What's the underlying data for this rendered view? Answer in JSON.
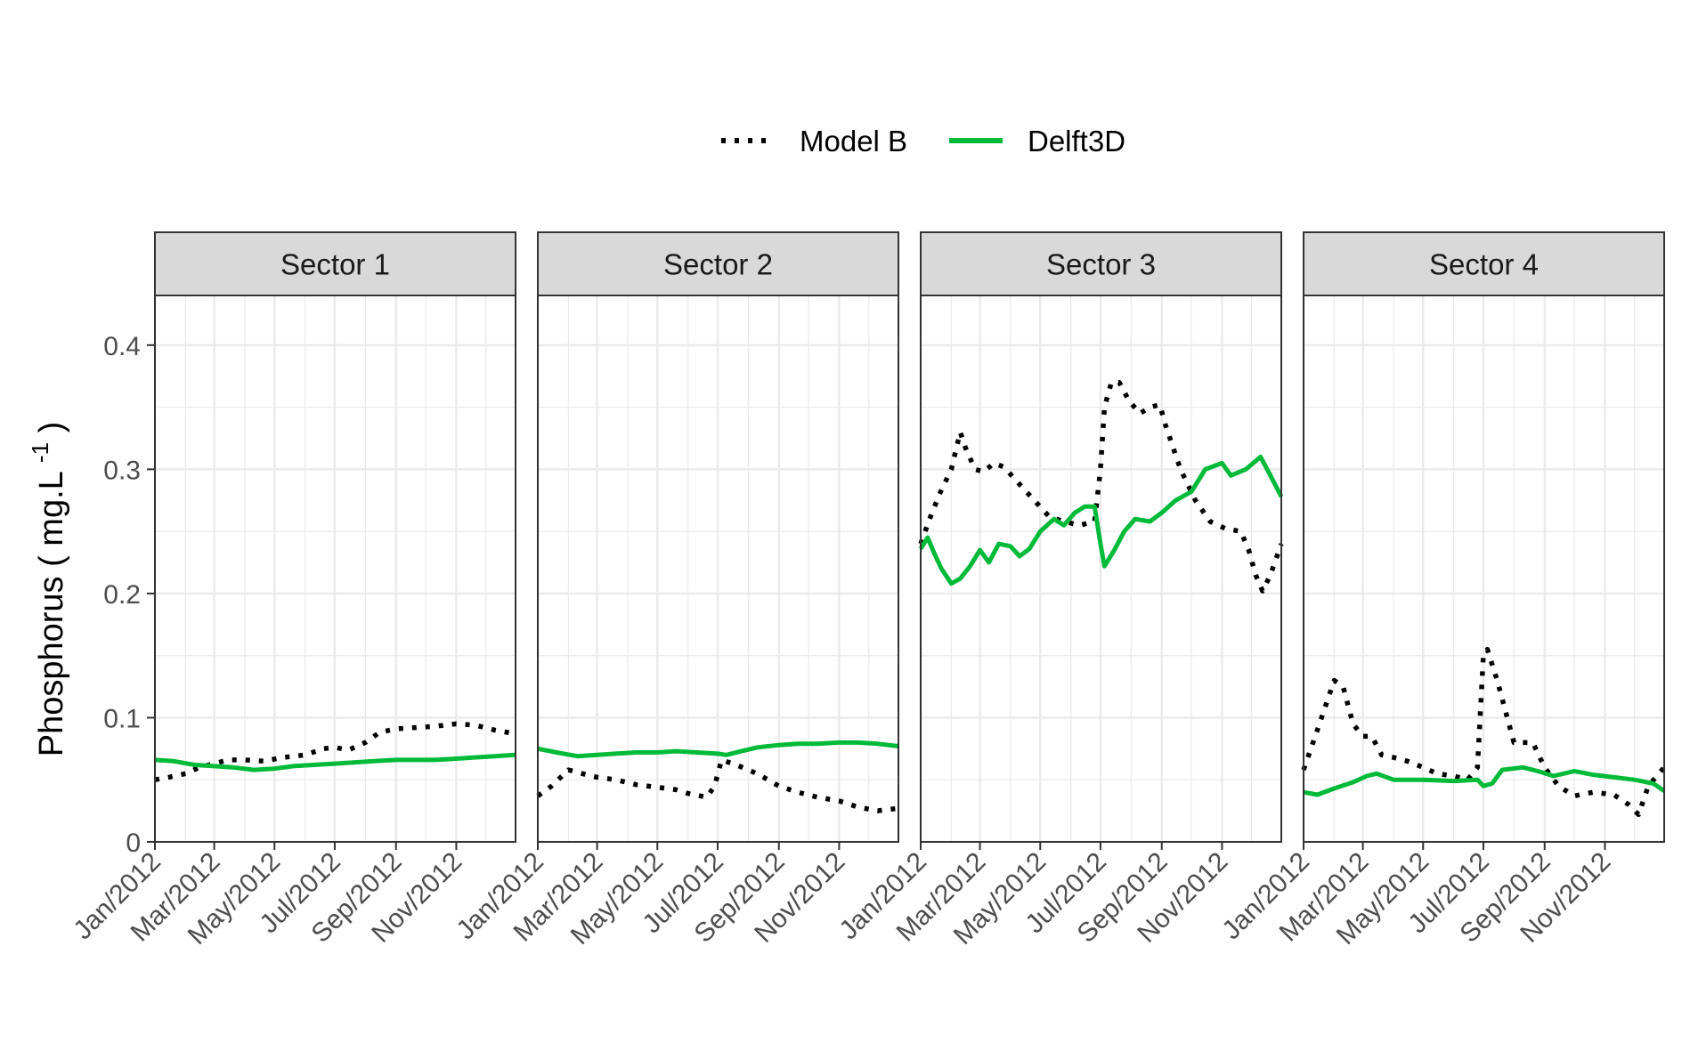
{
  "chart_data": {
    "type": "line",
    "ylabel": "Phosphorus",
    "ylabel_unit_base": "mg.L",
    "ylabel_unit_exp": "-1",
    "ylim": [
      0,
      0.44
    ],
    "yticks": [
      "0",
      "0.1",
      "0.2",
      "0.3",
      "0.4"
    ],
    "ytick_values": [
      0,
      0.1,
      0.2,
      0.3,
      0.4
    ],
    "xtick_labels": [
      "Jan/2012",
      "Mar/2012",
      "May/2012",
      "Jul/2012",
      "Sep/2012",
      "Nov/2012"
    ],
    "xtick_dates": [
      "2012-01-01",
      "2012-03-01",
      "2012-05-01",
      "2012-07-01",
      "2012-09-01",
      "2012-11-01"
    ],
    "xlim": [
      "2012-01-01",
      "2012-12-31"
    ],
    "grid": true,
    "legend_placement": "top",
    "legend": [
      {
        "name": "Model B",
        "style": "dotted",
        "color": "#000000"
      },
      {
        "name": "Delft3D",
        "style": "solid",
        "color": "#00BA38"
      }
    ],
    "panels": [
      {
        "title": "Sector 1",
        "series": [
          {
            "name": "Model B",
            "points": [
              [
                "2012-01-01",
                0.05
              ],
              [
                "2012-01-15",
                0.052
              ],
              [
                "2012-02-01",
                0.055
              ],
              [
                "2012-02-15",
                0.06
              ],
              [
                "2012-03-01",
                0.063
              ],
              [
                "2012-03-15",
                0.066
              ],
              [
                "2012-04-01",
                0.066
              ],
              [
                "2012-04-20",
                0.065
              ],
              [
                "2012-05-10",
                0.068
              ],
              [
                "2012-06-01",
                0.07
              ],
              [
                "2012-06-20",
                0.075
              ],
              [
                "2012-07-01",
                0.076
              ],
              [
                "2012-07-15",
                0.074
              ],
              [
                "2012-08-01",
                0.08
              ],
              [
                "2012-08-15",
                0.088
              ],
              [
                "2012-09-01",
                0.091
              ],
              [
                "2012-09-20",
                0.092
              ],
              [
                "2012-10-10",
                0.093
              ],
              [
                "2012-11-01",
                0.095
              ],
              [
                "2012-11-20",
                0.094
              ],
              [
                "2012-12-10",
                0.09
              ],
              [
                "2012-12-31",
                0.087
              ]
            ]
          },
          {
            "name": "Delft3D",
            "points": [
              [
                "2012-01-01",
                0.066
              ],
              [
                "2012-01-20",
                0.065
              ],
              [
                "2012-02-10",
                0.062
              ],
              [
                "2012-03-01",
                0.061
              ],
              [
                "2012-03-20",
                0.06
              ],
              [
                "2012-04-10",
                0.058
              ],
              [
                "2012-05-01",
                0.059
              ],
              [
                "2012-05-20",
                0.061
              ],
              [
                "2012-06-10",
                0.062
              ],
              [
                "2012-07-01",
                0.063
              ],
              [
                "2012-07-20",
                0.064
              ],
              [
                "2012-08-10",
                0.065
              ],
              [
                "2012-09-01",
                0.066
              ],
              [
                "2012-09-20",
                0.066
              ],
              [
                "2012-10-10",
                0.066
              ],
              [
                "2012-11-01",
                0.067
              ],
              [
                "2012-11-20",
                0.068
              ],
              [
                "2012-12-10",
                0.069
              ],
              [
                "2012-12-31",
                0.07
              ]
            ]
          }
        ]
      },
      {
        "title": "Sector 2",
        "series": [
          {
            "name": "Model B",
            "points": [
              [
                "2012-01-01",
                0.037
              ],
              [
                "2012-01-15",
                0.045
              ],
              [
                "2012-02-01",
                0.058
              ],
              [
                "2012-02-15",
                0.055
              ],
              [
                "2012-03-01",
                0.052
              ],
              [
                "2012-03-20",
                0.05
              ],
              [
                "2012-04-10",
                0.046
              ],
              [
                "2012-05-01",
                0.044
              ],
              [
                "2012-05-20",
                0.042
              ],
              [
                "2012-06-01",
                0.039
              ],
              [
                "2012-06-20",
                0.036
              ],
              [
                "2012-06-28",
                0.045
              ],
              [
                "2012-07-05",
                0.066
              ],
              [
                "2012-07-20",
                0.062
              ],
              [
                "2012-08-10",
                0.055
              ],
              [
                "2012-09-01",
                0.045
              ],
              [
                "2012-09-20",
                0.04
              ],
              [
                "2012-10-10",
                0.036
              ],
              [
                "2012-11-01",
                0.033
              ],
              [
                "2012-11-20",
                0.028
              ],
              [
                "2012-12-10",
                0.025
              ],
              [
                "2012-12-31",
                0.027
              ]
            ]
          },
          {
            "name": "Delft3D",
            "points": [
              [
                "2012-01-01",
                0.075
              ],
              [
                "2012-01-20",
                0.072
              ],
              [
                "2012-02-10",
                0.069
              ],
              [
                "2012-03-01",
                0.07
              ],
              [
                "2012-03-20",
                0.071
              ],
              [
                "2012-04-10",
                0.072
              ],
              [
                "2012-05-01",
                0.072
              ],
              [
                "2012-05-20",
                0.073
              ],
              [
                "2012-06-10",
                0.072
              ],
              [
                "2012-07-01",
                0.071
              ],
              [
                "2012-07-10",
                0.07
              ],
              [
                "2012-07-25",
                0.073
              ],
              [
                "2012-08-10",
                0.076
              ],
              [
                "2012-09-01",
                0.078
              ],
              [
                "2012-09-20",
                0.079
              ],
              [
                "2012-10-10",
                0.079
              ],
              [
                "2012-11-01",
                0.08
              ],
              [
                "2012-11-20",
                0.08
              ],
              [
                "2012-12-10",
                0.079
              ],
              [
                "2012-12-31",
                0.077
              ]
            ]
          }
        ]
      },
      {
        "title": "Sector 3",
        "series": [
          {
            "name": "Model B",
            "points": [
              [
                "2012-01-01",
                0.24
              ],
              [
                "2012-01-10",
                0.26
              ],
              [
                "2012-01-20",
                0.28
              ],
              [
                "2012-02-01",
                0.3
              ],
              [
                "2012-02-10",
                0.33
              ],
              [
                "2012-02-15",
                0.318
              ],
              [
                "2012-02-25",
                0.3
              ],
              [
                "2012-03-05",
                0.298
              ],
              [
                "2012-03-15",
                0.305
              ],
              [
                "2012-03-25",
                0.302
              ],
              [
                "2012-04-10",
                0.288
              ],
              [
                "2012-04-25",
                0.275
              ],
              [
                "2012-05-10",
                0.262
              ],
              [
                "2012-05-25",
                0.258
              ],
              [
                "2012-06-10",
                0.255
              ],
              [
                "2012-06-25",
                0.258
              ],
              [
                "2012-07-01",
                0.3
              ],
              [
                "2012-07-05",
                0.35
              ],
              [
                "2012-07-12",
                0.37
              ],
              [
                "2012-07-20",
                0.37
              ],
              [
                "2012-07-30",
                0.355
              ],
              [
                "2012-08-10",
                0.345
              ],
              [
                "2012-08-20",
                0.35
              ],
              [
                "2012-08-30",
                0.352
              ],
              [
                "2012-09-05",
                0.335
              ],
              [
                "2012-09-20",
                0.3
              ],
              [
                "2012-10-05",
                0.275
              ],
              [
                "2012-10-20",
                0.258
              ],
              [
                "2012-11-05",
                0.252
              ],
              [
                "2012-11-20",
                0.25
              ],
              [
                "2012-11-28",
                0.235
              ],
              [
                "2012-12-05",
                0.215
              ],
              [
                "2012-12-12",
                0.202
              ],
              [
                "2012-12-20",
                0.215
              ],
              [
                "2012-12-31",
                0.24
              ]
            ]
          },
          {
            "name": "Delft3D",
            "points": [
              [
                "2012-01-01",
                0.236
              ],
              [
                "2012-01-08",
                0.245
              ],
              [
                "2012-01-15",
                0.232
              ],
              [
                "2012-01-22",
                0.22
              ],
              [
                "2012-02-01",
                0.208
              ],
              [
                "2012-02-10",
                0.212
              ],
              [
                "2012-02-20",
                0.222
              ],
              [
                "2012-03-01",
                0.235
              ],
              [
                "2012-03-10",
                0.225
              ],
              [
                "2012-03-20",
                0.24
              ],
              [
                "2012-04-01",
                0.238
              ],
              [
                "2012-04-10",
                0.23
              ],
              [
                "2012-04-20",
                0.236
              ],
              [
                "2012-05-01",
                0.25
              ],
              [
                "2012-05-15",
                0.26
              ],
              [
                "2012-05-25",
                0.255
              ],
              [
                "2012-06-05",
                0.265
              ],
              [
                "2012-06-15",
                0.27
              ],
              [
                "2012-06-25",
                0.27
              ],
              [
                "2012-07-01",
                0.24
              ],
              [
                "2012-07-05",
                0.222
              ],
              [
                "2012-07-15",
                0.235
              ],
              [
                "2012-07-25",
                0.25
              ],
              [
                "2012-08-05",
                0.26
              ],
              [
                "2012-08-20",
                0.258
              ],
              [
                "2012-09-01",
                0.265
              ],
              [
                "2012-09-15",
                0.275
              ],
              [
                "2012-10-01",
                0.282
              ],
              [
                "2012-10-15",
                0.3
              ],
              [
                "2012-11-01",
                0.305
              ],
              [
                "2012-11-10",
                0.295
              ],
              [
                "2012-11-25",
                0.3
              ],
              [
                "2012-12-10",
                0.31
              ],
              [
                "2012-12-20",
                0.295
              ],
              [
                "2012-12-31",
                0.278
              ]
            ]
          }
        ]
      },
      {
        "title": "Sector 4",
        "series": [
          {
            "name": "Model B",
            "points": [
              [
                "2012-01-01",
                0.058
              ],
              [
                "2012-01-15",
                0.09
              ],
              [
                "2012-02-01",
                0.13
              ],
              [
                "2012-02-10",
                0.125
              ],
              [
                "2012-02-20",
                0.095
              ],
              [
                "2012-03-01",
                0.085
              ],
              [
                "2012-03-10",
                0.085
              ],
              [
                "2012-03-20",
                0.07
              ],
              [
                "2012-04-01",
                0.068
              ],
              [
                "2012-04-15",
                0.065
              ],
              [
                "2012-05-01",
                0.06
              ],
              [
                "2012-05-15",
                0.055
              ],
              [
                "2012-06-01",
                0.053
              ],
              [
                "2012-06-15",
                0.05
              ],
              [
                "2012-06-25",
                0.06
              ],
              [
                "2012-07-01",
                0.15
              ],
              [
                "2012-07-05",
                0.155
              ],
              [
                "2012-07-15",
                0.13
              ],
              [
                "2012-08-01",
                0.08
              ],
              [
                "2012-08-20",
                0.08
              ],
              [
                "2012-09-01",
                0.06
              ],
              [
                "2012-09-15",
                0.045
              ],
              [
                "2012-10-01",
                0.037
              ],
              [
                "2012-10-20",
                0.04
              ],
              [
                "2012-11-10",
                0.038
              ],
              [
                "2012-11-25",
                0.03
              ],
              [
                "2012-12-05",
                0.022
              ],
              [
                "2012-12-15",
                0.045
              ],
              [
                "2012-12-31",
                0.06
              ]
            ]
          },
          {
            "name": "Delft3D",
            "points": [
              [
                "2012-01-01",
                0.04
              ],
              [
                "2012-01-15",
                0.038
              ],
              [
                "2012-02-01",
                0.043
              ],
              [
                "2012-02-20",
                0.048
              ],
              [
                "2012-03-05",
                0.053
              ],
              [
                "2012-03-15",
                0.055
              ],
              [
                "2012-04-01",
                0.05
              ],
              [
                "2012-05-01",
                0.05
              ],
              [
                "2012-06-01",
                0.049
              ],
              [
                "2012-06-25",
                0.05
              ],
              [
                "2012-07-01",
                0.045
              ],
              [
                "2012-07-10",
                0.047
              ],
              [
                "2012-07-20",
                0.058
              ],
              [
                "2012-08-10",
                0.06
              ],
              [
                "2012-08-25",
                0.057
              ],
              [
                "2012-09-10",
                0.053
              ],
              [
                "2012-10-01",
                0.057
              ],
              [
                "2012-10-20",
                0.054
              ],
              [
                "2012-11-10",
                0.052
              ],
              [
                "2012-12-01",
                0.05
              ],
              [
                "2012-12-20",
                0.047
              ],
              [
                "2012-12-31",
                0.041
              ]
            ]
          }
        ]
      }
    ]
  }
}
